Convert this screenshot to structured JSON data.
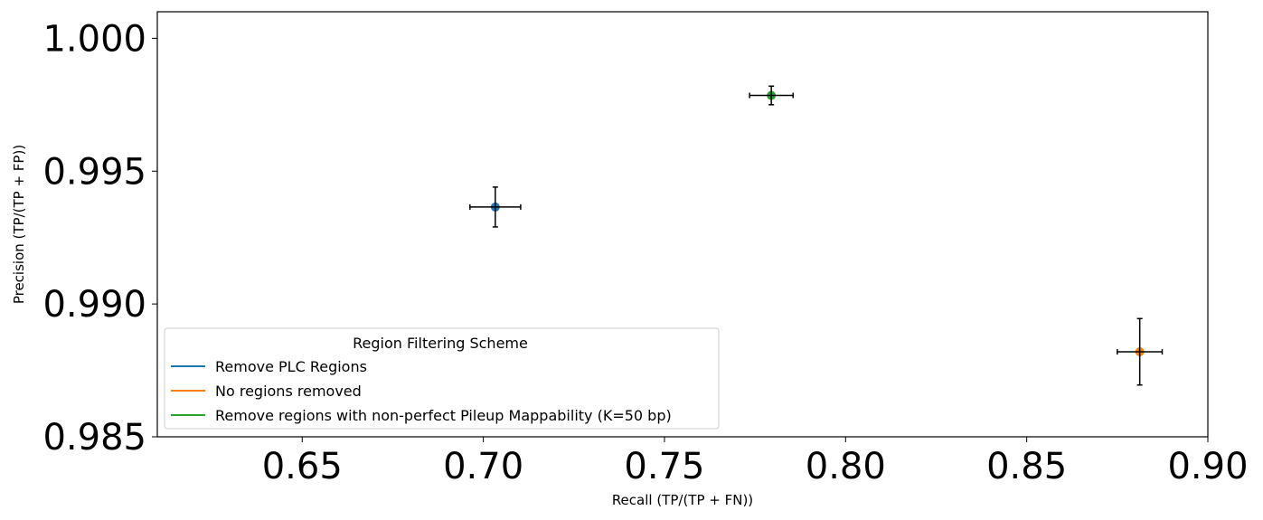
{
  "chart_data": {
    "type": "scatter",
    "xlabel": "Recall (TP/(TP + FN))",
    "ylabel": "Precision (TP/(TP + FP))",
    "xlim": [
      0.61,
      0.9
    ],
    "ylim": [
      0.985,
      1.001
    ],
    "xticks": [
      "0.65",
      "0.70",
      "0.75",
      "0.80",
      "0.85",
      "0.90"
    ],
    "yticks": [
      "0.985",
      "0.990",
      "0.995",
      "1.000"
    ],
    "grid": false,
    "legend": {
      "title": "Region Filtering Scheme",
      "placement": "lower-left"
    },
    "series": [
      {
        "name": "Remove PLC Regions",
        "color": "#1f77b4",
        "x": 0.7033,
        "y": 0.99365,
        "xerr": 0.007,
        "yerr": 0.00075
      },
      {
        "name": "No regions removed",
        "color": "#ff7f0e",
        "x": 0.8812,
        "y": 0.9882,
        "xerr": 0.0062,
        "yerr": 0.00125
      },
      {
        "name": "Remove regions with non-perfect Pileup Mappability (K=50 bp)",
        "color": "#2ca02c",
        "x": 0.7795,
        "y": 0.99785,
        "xerr": 0.006,
        "yerr": 0.00035
      }
    ]
  }
}
